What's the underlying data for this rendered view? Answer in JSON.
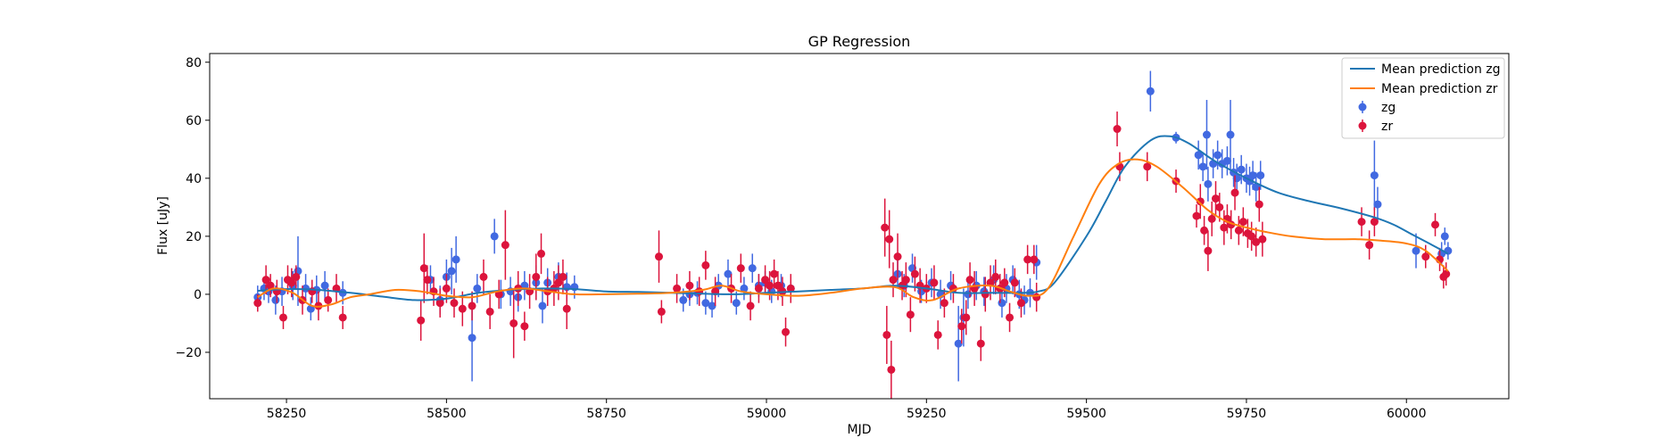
{
  "chart_data": {
    "type": "scatter",
    "title": "GP Regression",
    "xlabel": "MJD",
    "ylabel": "Flux [uJy]",
    "xlim": [
      58130,
      60160
    ],
    "ylim": [
      -36,
      83
    ],
    "xticks": [
      58250,
      58500,
      58750,
      59000,
      59250,
      59500,
      59750,
      60000
    ],
    "yticks": [
      -20,
      0,
      20,
      40,
      60,
      80
    ],
    "grid": false,
    "legend_position": "top-right",
    "colors": {
      "zg_points": "#4169e1",
      "zr_points": "#dc143c",
      "zg_mean": "#1f77b4",
      "zr_mean": "#ff7f0e"
    },
    "series": [
      {
        "name": "Mean prediction zg",
        "kind": "line",
        "x": [
          58205,
          58250,
          58300,
          58350,
          58400,
          58450,
          58500,
          58550,
          58600,
          58650,
          58700,
          58750,
          58800,
          58850,
          58900,
          58950,
          59000,
          59050,
          59100,
          59150,
          59200,
          59250,
          59300,
          59350,
          59400,
          59425,
          59450,
          59500,
          59530,
          59560,
          59600,
          59630,
          59660,
          59700,
          59750,
          59800,
          59850,
          59900,
          59950,
          59980,
          60010,
          60040,
          60065
        ],
        "y": [
          1.2,
          1.8,
          1.5,
          0.5,
          -0.8,
          -2.0,
          -1.5,
          0.5,
          1.5,
          2.0,
          1.8,
          1.0,
          0.8,
          0.5,
          0.2,
          0.0,
          0.5,
          1.0,
          1.5,
          2.0,
          3.0,
          2.0,
          0.5,
          0.5,
          0.5,
          1.0,
          4.0,
          20.0,
          32.0,
          44.0,
          53.0,
          54.5,
          52.0,
          46.0,
          40.0,
          35.0,
          32.0,
          29.5,
          26.5,
          24.0,
          20.5,
          17.0,
          14.0
        ]
      },
      {
        "name": "Mean prediction zr",
        "kind": "line",
        "x": [
          58205,
          58230,
          58260,
          58290,
          58320,
          58350,
          58380,
          58420,
          58460,
          58500,
          58540,
          58580,
          58620,
          58660,
          58700,
          58750,
          58800,
          58850,
          58900,
          58930,
          58960,
          59000,
          59050,
          59100,
          59150,
          59200,
          59230,
          59260,
          59300,
          59350,
          59380,
          59410,
          59440,
          59480,
          59520,
          59550,
          59580,
          59610,
          59650,
          59690,
          59720,
          59750,
          59780,
          59820,
          59870,
          59920,
          59960,
          60000,
          60030,
          60065
        ],
        "y": [
          -1.0,
          2.0,
          0.5,
          -4.0,
          -3.5,
          -1.0,
          0.0,
          1.5,
          1.0,
          -0.5,
          -1.0,
          1.0,
          2.0,
          1.0,
          0.0,
          0.0,
          0.2,
          0.5,
          1.5,
          3.0,
          1.0,
          0.0,
          -0.5,
          0.5,
          2.0,
          2.5,
          -1.0,
          -2.0,
          2.0,
          3.0,
          1.0,
          -0.5,
          2.0,
          20.0,
          38.0,
          45.0,
          46.5,
          44.0,
          37.0,
          29.0,
          25.0,
          23.0,
          21.5,
          20.0,
          19.0,
          19.0,
          18.5,
          17.5,
          15.0,
          8.0
        ]
      },
      {
        "name": "zg",
        "kind": "errorbar",
        "x": [
          58205,
          58215,
          58222,
          58233,
          58243,
          58260,
          58268,
          58280,
          58288,
          58297,
          58310,
          58338,
          58475,
          58490,
          58500,
          58508,
          58515,
          58540,
          58548,
          58575,
          58585,
          58600,
          58612,
          58622,
          58640,
          58650,
          58658,
          58675,
          58688,
          58700,
          58870,
          58880,
          58892,
          58905,
          58915,
          58925,
          58940,
          58953,
          58965,
          58978,
          58988,
          58998,
          59008,
          59023,
          59038,
          59205,
          59215,
          59228,
          59242,
          59258,
          59272,
          59288,
          59300,
          59308,
          59315,
          59328,
          59340,
          59355,
          59368,
          59375,
          59385,
          59395,
          59403,
          59412,
          59422,
          59600,
          59640,
          59675,
          59682,
          59688,
          59690,
          59698,
          59705,
          59712,
          59720,
          59725,
          59730,
          59735,
          59742,
          59750,
          59755,
          59760,
          59765,
          59772,
          59950,
          59955,
          60015,
          60055,
          60060,
          60065
        ],
        "y": [
          -1.0,
          2.0,
          1.0,
          -2.0,
          1.0,
          3.0,
          8.0,
          2.0,
          -5.0,
          1.5,
          3.0,
          0.5,
          5.0,
          -2.0,
          6.0,
          8.0,
          12.0,
          -15.0,
          2.0,
          20.0,
          0.0,
          1.0,
          -1.0,
          3.0,
          4.0,
          -4.0,
          4.0,
          6.0,
          2.5,
          2.5,
          -2.0,
          0.0,
          0.5,
          -3.0,
          -4.0,
          3.0,
          7.0,
          -3.0,
          2.0,
          9.0,
          3.0,
          4.0,
          1.0,
          3.0,
          2.0,
          7.0,
          3.0,
          9.0,
          1.0,
          4.0,
          0.0,
          3.0,
          -17.0,
          -8.0,
          0.0,
          3.0,
          1.0,
          5.0,
          -3.0,
          2.0,
          5.0,
          0.0,
          -2.0,
          0.5,
          11.0,
          70.0,
          54.0,
          48.0,
          44.0,
          55.0,
          38.0,
          45.0,
          48.0,
          45.0,
          46.0,
          55.0,
          42.0,
          40.0,
          43.0,
          40.0,
          39.0,
          41.0,
          37.0,
          41.0,
          41.0,
          31.0,
          15.0,
          14.0,
          20.0,
          15.0
        ],
        "yerr": [
          4,
          4,
          4,
          5,
          5,
          5,
          12,
          5,
          4,
          5,
          5,
          4,
          5,
          5,
          6,
          8,
          8,
          15,
          5,
          6,
          5,
          5,
          5,
          5,
          6,
          6,
          5,
          5,
          5,
          4,
          4,
          4,
          4,
          4,
          4,
          4,
          5,
          4,
          4,
          5,
          4,
          4,
          4,
          4,
          4,
          5,
          4,
          5,
          4,
          5,
          5,
          5,
          13,
          10,
          5,
          5,
          5,
          5,
          5,
          5,
          5,
          5,
          5,
          5,
          6,
          7,
          2,
          5,
          5,
          12,
          6,
          5,
          5,
          5,
          5,
          12,
          5,
          5,
          5,
          5,
          5,
          5,
          5,
          5,
          12,
          6,
          6,
          4,
          3,
          3
        ]
      },
      {
        "name": "zr",
        "kind": "errorbar",
        "x": [
          58205,
          58218,
          58225,
          58235,
          58245,
          58252,
          58258,
          58265,
          58275,
          58290,
          58300,
          58315,
          58328,
          58338,
          58460,
          58465,
          58470,
          58480,
          58490,
          58500,
          58512,
          58525,
          58540,
          58558,
          58568,
          58582,
          58592,
          58605,
          58612,
          58622,
          58630,
          58640,
          58648,
          58658,
          58668,
          58675,
          58682,
          58688,
          58832,
          58836,
          58860,
          58880,
          58895,
          58905,
          58920,
          58945,
          58960,
          58975,
          58988,
          58998,
          59005,
          59012,
          59018,
          59025,
          59030,
          59038,
          59185,
          59188,
          59192,
          59195,
          59198,
          59205,
          59212,
          59218,
          59225,
          59232,
          59240,
          59250,
          59262,
          59268,
          59278,
          59292,
          59305,
          59312,
          59318,
          59325,
          59335,
          59342,
          59350,
          59358,
          59365,
          59372,
          59380,
          59388,
          59398,
          59408,
          59418,
          59422,
          59548,
          59552,
          59595,
          59640,
          59672,
          59678,
          59684,
          59690,
          59696,
          59702,
          59708,
          59715,
          59720,
          59726,
          59732,
          59738,
          59745,
          59752,
          59758,
          59765,
          59770,
          59775,
          59930,
          59942,
          59950,
          60030,
          60045,
          60052,
          60058,
          60062
        ],
        "y": [
          -3.0,
          5.0,
          3.0,
          1.0,
          -8.0,
          5.0,
          4.0,
          6.0,
          -2.0,
          1.0,
          -4.0,
          -2.0,
          2.0,
          -8.0,
          -9.0,
          9.0,
          5.0,
          1.0,
          -3.0,
          2.0,
          -3.0,
          -5.0,
          -4.0,
          6.0,
          -6.0,
          0.0,
          17.0,
          -10.0,
          2.0,
          -11.0,
          1.0,
          6.0,
          14.0,
          1.0,
          2.0,
          4.0,
          6.0,
          -5.0,
          13.0,
          -6.0,
          2.0,
          3.0,
          1.0,
          10.0,
          1.0,
          2.0,
          9.0,
          -4.0,
          2.0,
          5.0,
          3.0,
          7.0,
          3.0,
          1.0,
          -13.0,
          2.0,
          23.0,
          -14.0,
          19.0,
          -26.0,
          5.0,
          13.0,
          3.0,
          5.0,
          -7.0,
          7.0,
          3.0,
          2.0,
          4.0,
          -14.0,
          -3.0,
          2.0,
          -11.0,
          -8.0,
          5.0,
          2.0,
          -17.0,
          0.0,
          4.0,
          6.0,
          2.0,
          4.0,
          -8.0,
          4.0,
          -3.0,
          12.0,
          12.0,
          -1.0,
          57.0,
          44.0,
          44.0,
          39.0,
          27.0,
          32.0,
          22.0,
          15.0,
          26.0,
          33.0,
          30.0,
          23.0,
          26.0,
          24.0,
          35.0,
          22.0,
          25.0,
          21.0,
          20.0,
          18.0,
          31.0,
          19.0,
          25.0,
          17.0,
          25.0,
          13.0,
          24.0,
          12.0,
          6.0,
          7.0
        ],
        "yerr": [
          3,
          5,
          4,
          4,
          4,
          5,
          5,
          4,
          5,
          4,
          5,
          4,
          5,
          4,
          7,
          12,
          5,
          5,
          5,
          5,
          5,
          6,
          5,
          6,
          6,
          5,
          12,
          12,
          6,
          5,
          6,
          8,
          7,
          5,
          6,
          6,
          6,
          7,
          9,
          4,
          5,
          5,
          5,
          5,
          5,
          5,
          5,
          5,
          5,
          5,
          5,
          5,
          5,
          5,
          5,
          5,
          10,
          10,
          10,
          10,
          6,
          8,
          5,
          6,
          6,
          6,
          6,
          5,
          6,
          5,
          5,
          5,
          6,
          6,
          6,
          6,
          6,
          6,
          6,
          6,
          5,
          5,
          5,
          5,
          5,
          5,
          5,
          5,
          6,
          5,
          5,
          4,
          4,
          6,
          5,
          7,
          6,
          6,
          5,
          6,
          5,
          5,
          6,
          5,
          5,
          5,
          5,
          5,
          6,
          6,
          5,
          5,
          5,
          4,
          4,
          4,
          4,
          4
        ]
      }
    ]
  }
}
